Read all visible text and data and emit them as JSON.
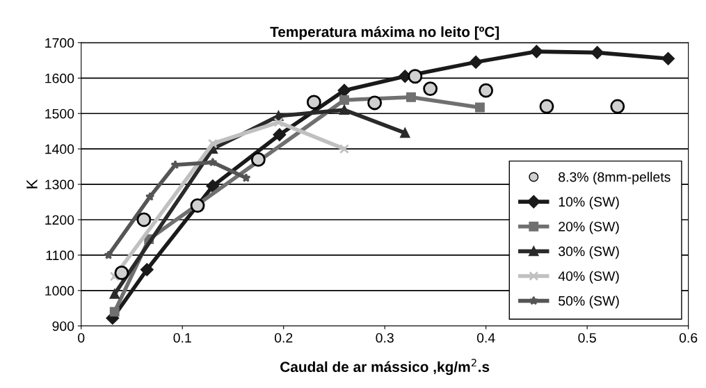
{
  "chart_data": {
    "type": "line",
    "title": "Temperatura máxima no leito [ºC]",
    "xlabel": "Caudal de ar mássico ,kg/m$^{2}$.s",
    "ylabel": "K",
    "xlim": [
      0,
      0.6
    ],
    "xticks": [
      0,
      0.1,
      0.2,
      0.3,
      0.4,
      0.5,
      0.6
    ],
    "ylim": [
      900,
      1700
    ],
    "yticks": [
      900,
      1000,
      1100,
      1200,
      1300,
      1400,
      1500,
      1600,
      1700
    ],
    "grid": "y",
    "legend": "lower right",
    "series": [
      {
        "name": "8.3% (8mm-pellets",
        "type": "scatter",
        "marker": "circle",
        "color": "#d0d0d0",
        "x": [
          0.04,
          0.062,
          0.115,
          0.175,
          0.23,
          0.29,
          0.33,
          0.345,
          0.4,
          0.46,
          0.53
        ],
        "values": [
          1050,
          1200,
          1240,
          1370,
          1532,
          1530,
          1605,
          1570,
          1565,
          1520,
          1520
        ]
      },
      {
        "name": "10% (SW)",
        "marker": "diamond",
        "color": "#1a1a1a",
        "x": [
          0.031,
          0.065,
          0.13,
          0.196,
          0.26,
          0.32,
          0.39,
          0.45,
          0.51,
          0.58
        ],
        "values": [
          922,
          1059,
          1295,
          1440,
          1565,
          1605,
          1645,
          1675,
          1672,
          1655
        ]
      },
      {
        "name": "20% (SW)",
        "marker": "square",
        "color": "#707070",
        "x": [
          0.033,
          0.067,
          0.26,
          0.326,
          0.394
        ],
        "values": [
          940,
          1145,
          1538,
          1546,
          1517
        ]
      },
      {
        "name": "30% (SW)",
        "marker": "triangle",
        "color": "#2a2a2a",
        "x": [
          0.033,
          0.13,
          0.195,
          0.26,
          0.32
        ],
        "values": [
          990,
          1400,
          1493,
          1510,
          1445
        ]
      },
      {
        "name": "40% (SW)",
        "marker": "cross",
        "color": "#c0c0c0",
        "x": [
          0.033,
          0.13,
          0.195,
          0.26
        ],
        "values": [
          1040,
          1415,
          1475,
          1400
        ]
      },
      {
        "name": "50% (SW)",
        "marker": "star",
        "color": "#555555",
        "x": [
          0.027,
          0.068,
          0.093,
          0.13,
          0.163
        ],
        "values": [
          1100,
          1265,
          1355,
          1362,
          1318
        ]
      }
    ]
  }
}
